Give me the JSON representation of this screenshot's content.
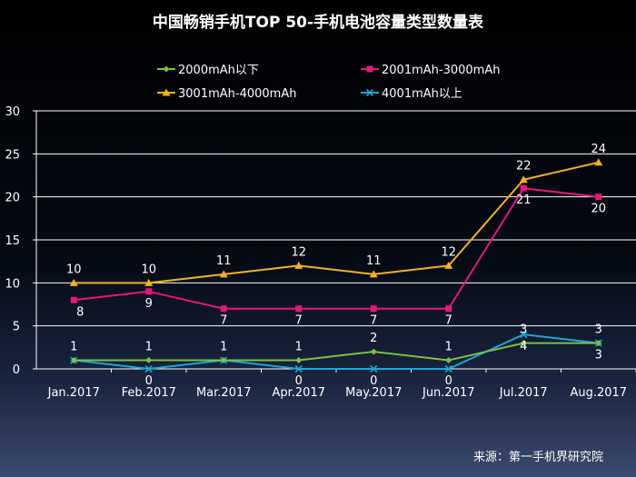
{
  "chart_data": {
    "type": "line",
    "title": "中国畅销手机TOP 50-手机电池容量类型数量表",
    "categories": [
      "Jan.2017",
      "Feb.2017",
      "Mar.2017",
      "Apr.2017",
      "May.2017",
      "Jun.2017",
      "Jul.2017",
      "Aug.2017"
    ],
    "ylim": [
      0,
      30
    ],
    "yticks": [
      0,
      5,
      10,
      15,
      20,
      25,
      30
    ],
    "grid": true,
    "legend_position": "top",
    "series": [
      {
        "name": "2000mAh以下",
        "values": [
          1,
          1,
          1,
          1,
          2,
          1,
          3,
          3
        ],
        "labels": [
          "1",
          "1",
          "1",
          "1",
          "2",
          "1",
          "3",
          "3"
        ],
        "color": "#7dc241",
        "marker": "diamond",
        "label_side": "above"
      },
      {
        "name": "2001mAh-3000mAh",
        "values": [
          8,
          9,
          7,
          7,
          7,
          7,
          21,
          20
        ],
        "labels": [
          "8",
          "9",
          "7",
          "7",
          "7",
          "7",
          "21",
          "20"
        ],
        "color": "#e8167c",
        "marker": "square",
        "label_side": "below"
      },
      {
        "name": "3001mAh-4000mAh",
        "values": [
          10,
          10,
          11,
          12,
          11,
          12,
          22,
          24
        ],
        "labels": [
          "10",
          "10",
          "11",
          "12",
          "11",
          "12",
          "22",
          "24"
        ],
        "color": "#f5b21a",
        "marker": "triangle",
        "label_side": "above"
      },
      {
        "name": "4001mAh以上",
        "values": [
          1,
          0,
          1,
          0,
          0,
          0,
          4,
          3
        ],
        "labels": [
          "",
          "0",
          "",
          "0",
          "0",
          "0",
          "4",
          "3"
        ],
        "color": "#1ba8d6",
        "marker": "x",
        "label_side": "below"
      }
    ]
  },
  "source": "来源：第一手机界研究院"
}
